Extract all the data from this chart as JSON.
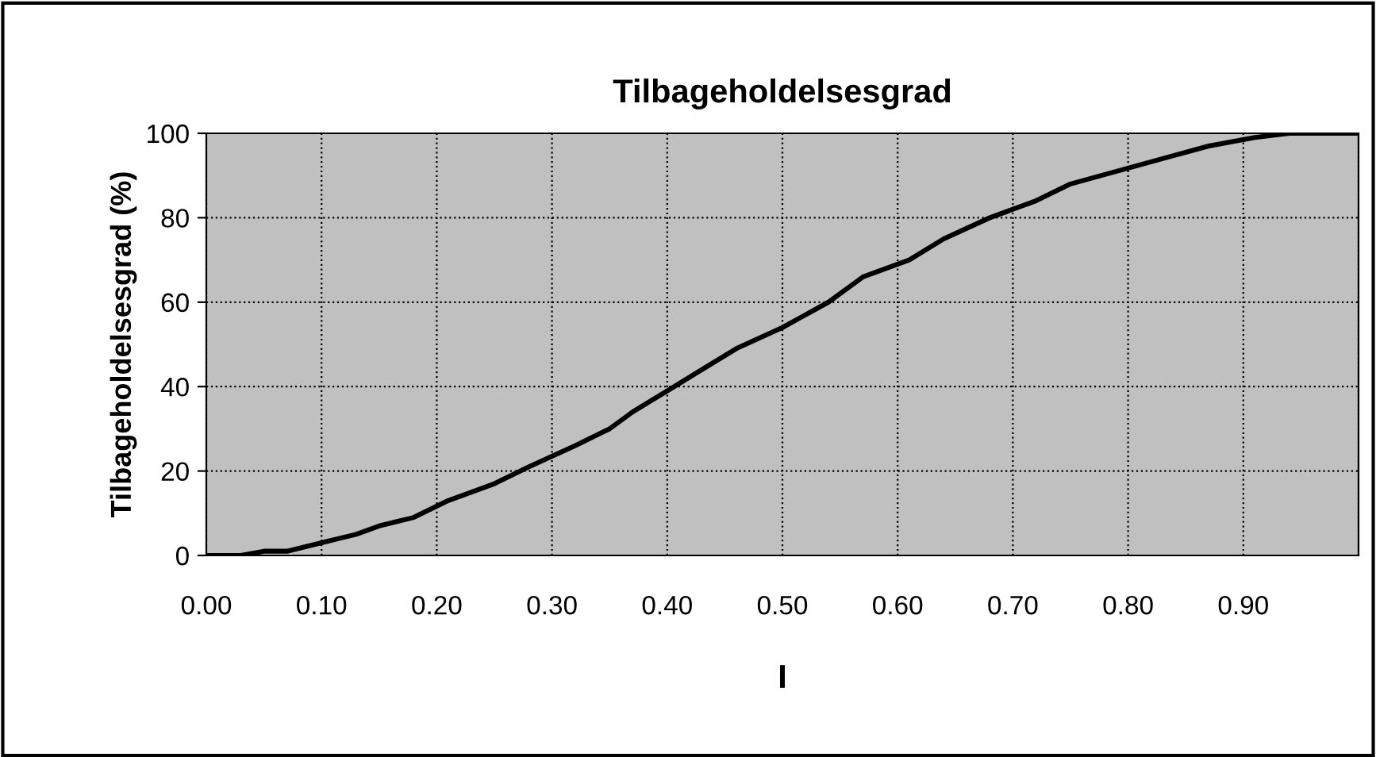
{
  "chart_data": {
    "type": "line",
    "title": "Tilbageholdelsesgrad",
    "xlabel": "I",
    "ylabel": "Tilbageholdelsesgrad (%)",
    "x": [
      0,
      0.03,
      0.05,
      0.07,
      0.1,
      0.13,
      0.15,
      0.18,
      0.21,
      0.25,
      0.28,
      0.32,
      0.35,
      0.37,
      0.4,
      0.43,
      0.46,
      0.5,
      0.54,
      0.57,
      0.61,
      0.64,
      0.68,
      0.72,
      0.75,
      0.79,
      0.83,
      0.87,
      0.91,
      0.94,
      1.0
    ],
    "series": [
      {
        "color": "#000000",
        "values": [
          0,
          0,
          1,
          1,
          3,
          5,
          7,
          9,
          13,
          17,
          21,
          26,
          30,
          34,
          39,
          44,
          49,
          54,
          60,
          66,
          70,
          75,
          80,
          84,
          88,
          91,
          94,
          97,
          99,
          100,
          100
        ]
      }
    ],
    "xlim": [
      0,
      1
    ],
    "ylim": [
      0,
      100
    ],
    "xticks": [
      {
        "value": 0,
        "label": "0.00"
      },
      {
        "value": 0.1,
        "label": "0.10"
      },
      {
        "value": 0.2,
        "label": "0.20"
      },
      {
        "value": 0.3,
        "label": "0.30"
      },
      {
        "value": 0.4,
        "label": "0.40"
      },
      {
        "value": 0.5,
        "label": "0.50"
      },
      {
        "value": 0.6,
        "label": "0.60"
      },
      {
        "value": 0.7,
        "label": "0.70"
      },
      {
        "value": 0.8,
        "label": "0.80"
      },
      {
        "value": 0.9,
        "label": "0.90"
      },
      {
        "value": 1.0,
        "label": null
      }
    ],
    "yticks": [
      0,
      20,
      40,
      60,
      80,
      100
    ],
    "grid": true,
    "marker": "none",
    "line_style": "solid"
  }
}
